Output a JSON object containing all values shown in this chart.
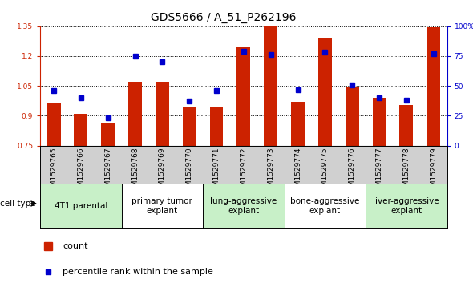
{
  "title": "GDS5666 / A_51_P262196",
  "samples": [
    "GSM1529765",
    "GSM1529766",
    "GSM1529767",
    "GSM1529768",
    "GSM1529769",
    "GSM1529770",
    "GSM1529771",
    "GSM1529772",
    "GSM1529773",
    "GSM1529774",
    "GSM1529775",
    "GSM1529776",
    "GSM1529777",
    "GSM1529778",
    "GSM1529779"
  ],
  "counts": [
    0.965,
    0.91,
    0.865,
    1.07,
    1.07,
    0.94,
    0.94,
    1.245,
    1.35,
    0.97,
    1.29,
    1.045,
    0.99,
    0.955,
    1.345
  ],
  "percentiles": [
    46,
    40,
    23,
    75,
    70,
    37,
    46,
    79,
    76,
    47,
    78,
    51,
    40,
    38,
    77
  ],
  "ylim_left": [
    0.75,
    1.35
  ],
  "ylim_right": [
    0,
    100
  ],
  "yticks_left": [
    0.75,
    0.9,
    1.05,
    1.2,
    1.35
  ],
  "yticks_right": [
    0,
    25,
    50,
    75,
    100
  ],
  "ytick_labels_right": [
    "0",
    "25",
    "50",
    "75",
    "100%"
  ],
  "groups": [
    {
      "label": "4T1 parental",
      "start": 0,
      "end": 3,
      "color": "#c8f0c8"
    },
    {
      "label": "primary tumor\nexplant",
      "start": 3,
      "end": 6,
      "color": "#ffffff"
    },
    {
      "label": "lung-aggressive\nexplant",
      "start": 6,
      "end": 9,
      "color": "#c8f0c8"
    },
    {
      "label": "bone-aggressive\nexplant",
      "start": 9,
      "end": 12,
      "color": "#ffffff"
    },
    {
      "label": "liver-aggressive\nexplant",
      "start": 12,
      "end": 15,
      "color": "#c8f0c8"
    }
  ],
  "bar_color": "#cc2200",
  "dot_color": "#0000cc",
  "bar_width": 0.5,
  "sample_bg": "#d0d0d0",
  "plot_bg": "#ffffff",
  "title_fontsize": 10,
  "tick_fontsize": 6.5,
  "legend_fontsize": 8
}
